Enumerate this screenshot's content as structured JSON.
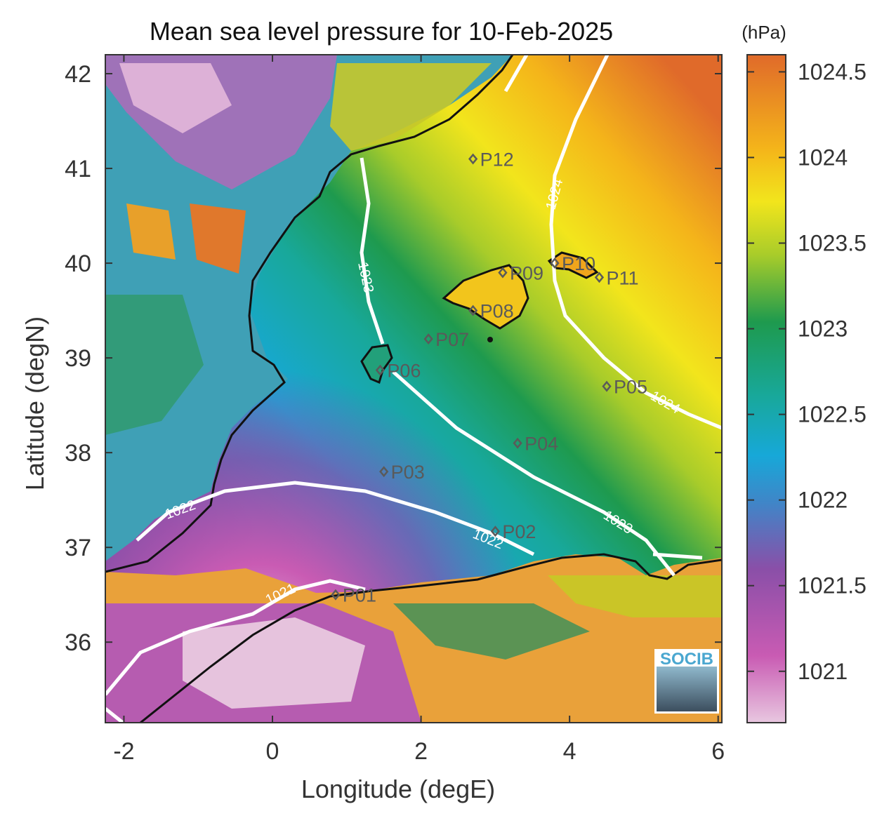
{
  "title": "Mean sea level pressure for 10-Feb-2025",
  "colorbar": {
    "unit": "(hPa)",
    "ticks": [
      "1021",
      "1021.5",
      "1022",
      "1022.5",
      "1023",
      "1023.5",
      "1024",
      "1024.5"
    ],
    "range": [
      1020.7,
      1024.6
    ],
    "colors": [
      "#e8c7e0",
      "#c95bb3",
      "#8a4fa8",
      "#3f86c8",
      "#17a8d8",
      "#18a89a",
      "#1e9a4e",
      "#a8cc2a",
      "#f2e51c",
      "#f4b41a",
      "#e06a2a"
    ]
  },
  "axes": {
    "xlabel": "Longitude (degE)",
    "ylabel": "Latitude (degN)",
    "xticks": [
      "-2",
      "0",
      "2",
      "4",
      "6"
    ],
    "yticks": [
      "36",
      "37",
      "38",
      "39",
      "40",
      "41",
      "42"
    ],
    "xlim": [
      -2.25,
      6.05
    ],
    "ylim": [
      35.15,
      42.2
    ]
  },
  "points": [
    {
      "name": "P01",
      "lon": 0.85,
      "lat": 36.5
    },
    {
      "name": "P02",
      "lon": 3.0,
      "lat": 37.17
    },
    {
      "name": "P03",
      "lon": 1.5,
      "lat": 37.8
    },
    {
      "name": "P04",
      "lon": 3.3,
      "lat": 38.1
    },
    {
      "name": "P05",
      "lon": 4.5,
      "lat": 38.7
    },
    {
      "name": "P06",
      "lon": 1.45,
      "lat": 38.87
    },
    {
      "name": "P07",
      "lon": 2.1,
      "lat": 39.2
    },
    {
      "name": "P08",
      "lon": 2.7,
      "lat": 39.5
    },
    {
      "name": "P09",
      "lon": 3.1,
      "lat": 39.9
    },
    {
      "name": "P10",
      "lon": 3.8,
      "lat": 40.0
    },
    {
      "name": "P11",
      "lon": 4.4,
      "lat": 39.85
    },
    {
      "name": "P12",
      "lon": 2.7,
      "lat": 41.1
    }
  ],
  "contours": [
    {
      "level": "1021",
      "label": "1021"
    },
    {
      "level": "1022",
      "label": "1022"
    },
    {
      "level": "1023",
      "label": "1023"
    },
    {
      "level": "1024",
      "label": "1024"
    }
  ],
  "logo": {
    "text": "SOCIB"
  }
}
